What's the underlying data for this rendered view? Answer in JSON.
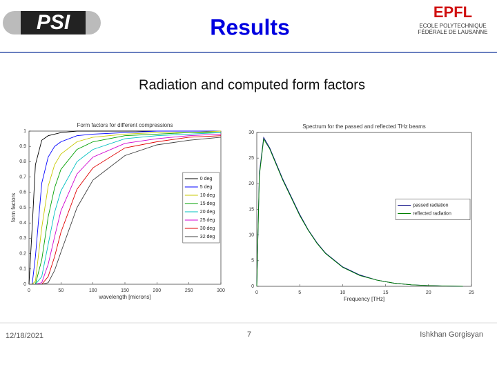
{
  "slide": {
    "title": "Results",
    "subtitle": "Radiation and computed form factors",
    "date": "12/18/2021",
    "page": "7",
    "author": "Ishkhan Gorgisyan",
    "logo_left": "PSI",
    "logo_right": "EPFL",
    "logo_right_lines": [
      "ECOLE POLYTECHNIQUE",
      "FÉDÉRALE DE LAUSANNE"
    ]
  },
  "chart_data": [
    {
      "type": "line",
      "title": "Form factors for different compressions",
      "xlabel": "wavelength [microns]",
      "ylabel": "form factors",
      "x": [
        0,
        5,
        10,
        20,
        30,
        40,
        50,
        75,
        100,
        150,
        200,
        250,
        300
      ],
      "xlim": [
        0,
        300
      ],
      "xticks": [
        0,
        50,
        100,
        150,
        200,
        250,
        300
      ],
      "ylim": [
        0,
        1
      ],
      "yticks": [
        0,
        0.1,
        0.2,
        0.3,
        0.4,
        0.5,
        0.6,
        0.7,
        0.8,
        0.9,
        1
      ],
      "legend": "center right",
      "series": [
        {
          "name": "0 deg",
          "color": "#000000",
          "values": [
            0,
            0.37,
            0.78,
            0.94,
            0.97,
            0.98,
            0.99,
            1,
            1,
            1,
            1,
            1,
            1
          ]
        },
        {
          "name": "5 deg",
          "color": "#0000ff",
          "values": [
            0,
            0,
            0.18,
            0.66,
            0.83,
            0.9,
            0.93,
            0.97,
            0.98,
            0.99,
            1,
            1,
            1
          ]
        },
        {
          "name": "10 deg",
          "color": "#c8c800",
          "values": [
            0,
            0,
            0.02,
            0.37,
            0.64,
            0.78,
            0.85,
            0.93,
            0.96,
            0.98,
            0.99,
            0.99,
            1
          ]
        },
        {
          "name": "15 deg",
          "color": "#00a000",
          "values": [
            0,
            0,
            0,
            0.16,
            0.44,
            0.63,
            0.75,
            0.88,
            0.93,
            0.97,
            0.98,
            0.99,
            0.99
          ]
        },
        {
          "name": "20 deg",
          "color": "#00c0c0",
          "values": [
            0,
            0,
            0,
            0.05,
            0.26,
            0.47,
            0.61,
            0.8,
            0.88,
            0.95,
            0.97,
            0.98,
            0.99
          ]
        },
        {
          "name": "25 deg",
          "color": "#d000d0",
          "values": [
            0,
            0,
            0,
            0.01,
            0.13,
            0.31,
            0.48,
            0.72,
            0.83,
            0.92,
            0.95,
            0.97,
            0.98
          ]
        },
        {
          "name": "30 deg",
          "color": "#e00000",
          "values": [
            0,
            0,
            0,
            0,
            0.05,
            0.18,
            0.34,
            0.62,
            0.76,
            0.89,
            0.93,
            0.96,
            0.97
          ]
        },
        {
          "name": "32 deg",
          "color": "#404040",
          "values": [
            0,
            0,
            0,
            0,
            0.01,
            0.09,
            0.21,
            0.5,
            0.68,
            0.84,
            0.91,
            0.94,
            0.96
          ]
        }
      ]
    },
    {
      "type": "line",
      "title": "Spectrum for the passed and reflected THz beams",
      "xlabel": "Frequency [THz]",
      "x": [
        0,
        0.3,
        0.8,
        1.5,
        2,
        3,
        4,
        5,
        6,
        7,
        8,
        10,
        12,
        14,
        16,
        18,
        20,
        22,
        24
      ],
      "xlim": [
        0,
        25
      ],
      "xticks": [
        0,
        5,
        10,
        15,
        20,
        25
      ],
      "ylim": [
        0,
        30
      ],
      "yticks": [
        0,
        5,
        10,
        15,
        20,
        25,
        30
      ],
      "legend": "center right",
      "series": [
        {
          "name": "passed radiation",
          "color": "#000080",
          "values": [
            0,
            22,
            29,
            27,
            25,
            21,
            17.5,
            14,
            11,
            8.5,
            6.5,
            3.8,
            2.2,
            1.2,
            0.6,
            0.3,
            0.15,
            0.05,
            0.02
          ]
        },
        {
          "name": "reflected radiation",
          "color": "#008000",
          "values": [
            0,
            21.5,
            28.7,
            26.8,
            24.8,
            20.8,
            17.3,
            13.8,
            10.9,
            8.4,
            6.4,
            3.7,
            2.1,
            1.2,
            0.6,
            0.3,
            0.15,
            0.05,
            0.02
          ]
        }
      ]
    }
  ]
}
